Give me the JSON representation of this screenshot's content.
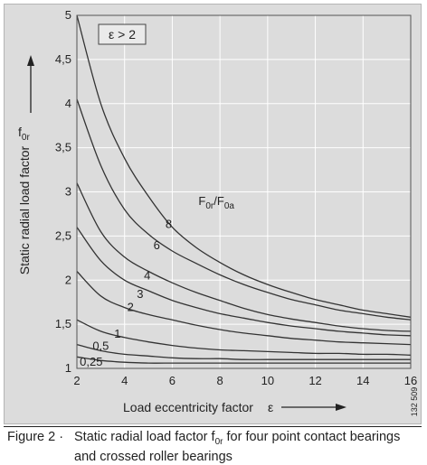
{
  "chart_data": {
    "type": "line",
    "title": "",
    "condition_label": "ε > 2",
    "xlabel": "Load eccentricity factor",
    "xlabel_symbol": "ε",
    "ylabel": "Static radial load factor",
    "ylabel_symbol": "f",
    "ylabel_symbol_sub": "0r",
    "xlim": [
      2,
      16
    ],
    "ylim": [
      1,
      5
    ],
    "x_ticks": [
      2,
      4,
      6,
      8,
      10,
      12,
      14,
      16
    ],
    "y_ticks": [
      1,
      1.5,
      2,
      2.5,
      3,
      3.5,
      4,
      4.5,
      5
    ],
    "y_tick_labels": [
      "1",
      "1,5",
      "2",
      "2,5",
      "3",
      "3,5",
      "4",
      "4,5",
      "5"
    ],
    "grid": true,
    "series_family_label": {
      "main": "F",
      "sub1": "0r",
      "sep": "/F",
      "sub2": "0a"
    },
    "series": [
      {
        "name": "8",
        "x": [
          2,
          3,
          4,
          5,
          6,
          7,
          8,
          9,
          10,
          11,
          12,
          13,
          14,
          15,
          16
        ],
        "y": [
          5.0,
          4.0,
          3.38,
          2.95,
          2.6,
          2.37,
          2.2,
          2.06,
          1.95,
          1.86,
          1.78,
          1.72,
          1.66,
          1.62,
          1.58
        ]
      },
      {
        "name": "6",
        "x": [
          2,
          3,
          4,
          5,
          6,
          7,
          8,
          9,
          10,
          11,
          12,
          13,
          14,
          15,
          16
        ],
        "y": [
          4.05,
          3.3,
          2.8,
          2.52,
          2.33,
          2.19,
          2.06,
          1.95,
          1.86,
          1.78,
          1.72,
          1.66,
          1.62,
          1.58,
          1.55
        ]
      },
      {
        "name": "4",
        "x": [
          2,
          3,
          4,
          5,
          6,
          7,
          8,
          9,
          10,
          11,
          12,
          13,
          14,
          15,
          16
        ],
        "y": [
          3.1,
          2.55,
          2.26,
          2.1,
          1.97,
          1.86,
          1.77,
          1.68,
          1.61,
          1.56,
          1.52,
          1.48,
          1.45,
          1.43,
          1.42
        ]
      },
      {
        "name": "3",
        "x": [
          2,
          3,
          4,
          5,
          6,
          7,
          8,
          9,
          10,
          11,
          12,
          13,
          14,
          15,
          16
        ],
        "y": [
          2.6,
          2.22,
          2.0,
          1.88,
          1.77,
          1.69,
          1.62,
          1.57,
          1.52,
          1.48,
          1.45,
          1.42,
          1.4,
          1.38,
          1.37
        ]
      },
      {
        "name": "2",
        "x": [
          2,
          3,
          4,
          5,
          6,
          7,
          8,
          9,
          10,
          11,
          12,
          13,
          14,
          15,
          16
        ],
        "y": [
          2.1,
          1.82,
          1.69,
          1.61,
          1.55,
          1.49,
          1.44,
          1.4,
          1.37,
          1.34,
          1.32,
          1.3,
          1.29,
          1.28,
          1.27
        ]
      },
      {
        "name": "1",
        "x": [
          2,
          3,
          4,
          5,
          6,
          7,
          8,
          9,
          10,
          11,
          12,
          13,
          14,
          15,
          16
        ],
        "y": [
          1.55,
          1.42,
          1.35,
          1.3,
          1.26,
          1.23,
          1.21,
          1.2,
          1.19,
          1.18,
          1.17,
          1.17,
          1.16,
          1.16,
          1.15
        ]
      },
      {
        "name": "0,5",
        "x": [
          2,
          3,
          4,
          5,
          6,
          7,
          8,
          9,
          10,
          11,
          12,
          13,
          14,
          15,
          16
        ],
        "y": [
          1.27,
          1.2,
          1.16,
          1.14,
          1.12,
          1.11,
          1.11,
          1.1,
          1.1,
          1.1,
          1.1,
          1.1,
          1.1,
          1.1,
          1.1
        ]
      },
      {
        "name": "0,25",
        "x": [
          2,
          3,
          4,
          5,
          6,
          7,
          8,
          9,
          10,
          11,
          12,
          13,
          14,
          15,
          16
        ],
        "y": [
          1.13,
          1.09,
          1.07,
          1.06,
          1.06,
          1.06,
          1.06,
          1.06,
          1.06,
          1.06,
          1.06,
          1.06,
          1.06,
          1.06,
          1.06
        ]
      }
    ],
    "side_code": "132 509"
  },
  "caption": {
    "label": "Figure 2 ·",
    "text_pre": "Static radial load factor f",
    "text_sub": "0r",
    "text_post": " for four point contact bearings and crossed roller bearings"
  },
  "colors": {
    "background": "#dcdcdc",
    "grid": "#ffffff",
    "line": "#333333"
  }
}
